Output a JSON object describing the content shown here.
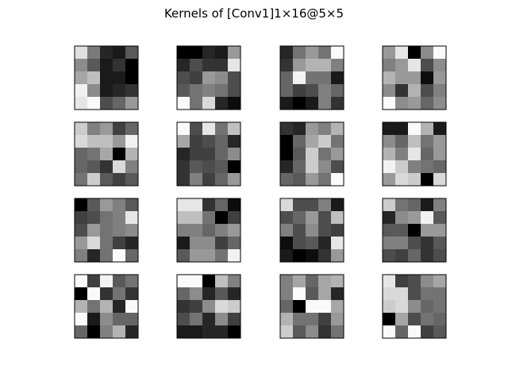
{
  "chart_data": {
    "type": "heatmap",
    "title": "Kernels of [Conv1]1×16@5×5",
    "grid": false,
    "colormap": "gray",
    "value_range": [
      0,
      1
    ],
    "kernels": [
      [
        [
          0.88,
          0.48,
          0.15,
          0.1,
          0.35
        ],
        [
          0.55,
          0.35,
          0.1,
          0.2,
          0.0
        ],
        [
          0.65,
          0.75,
          0.1,
          0.1,
          0.0
        ],
        [
          0.95,
          0.55,
          0.1,
          0.15,
          0.2
        ],
        [
          0.9,
          0.98,
          0.3,
          0.4,
          0.6
        ]
      ],
      [
        [
          0.0,
          0.0,
          0.15,
          0.1,
          0.6
        ],
        [
          0.15,
          0.3,
          0.2,
          0.2,
          0.9
        ],
        [
          0.3,
          0.25,
          0.6,
          0.55,
          0.3
        ],
        [
          0.35,
          0.45,
          0.5,
          0.45,
          0.3
        ],
        [
          0.98,
          0.45,
          0.85,
          0.15,
          0.05
        ]
      ],
      [
        [
          0.15,
          0.45,
          0.6,
          0.45,
          0.98
        ],
        [
          0.2,
          0.6,
          0.7,
          0.7,
          0.5
        ],
        [
          0.4,
          0.95,
          0.45,
          0.45,
          0.1
        ],
        [
          0.4,
          0.25,
          0.3,
          0.5,
          0.4
        ],
        [
          0.1,
          0.0,
          0.1,
          0.5,
          0.2
        ]
      ],
      [
        [
          0.6,
          0.9,
          0.0,
          0.55,
          0.98
        ],
        [
          0.5,
          0.6,
          0.9,
          0.3,
          0.55
        ],
        [
          0.7,
          0.6,
          0.6,
          0.05,
          0.6
        ],
        [
          0.55,
          0.2,
          0.7,
          0.3,
          0.5
        ],
        [
          0.98,
          0.55,
          0.6,
          0.4,
          0.55
        ]
      ],
      [
        [
          0.8,
          0.5,
          0.6,
          0.25,
          0.4
        ],
        [
          0.85,
          0.75,
          0.75,
          0.6,
          0.95
        ],
        [
          0.4,
          0.45,
          0.65,
          0.0,
          0.7
        ],
        [
          0.4,
          0.35,
          0.2,
          0.85,
          0.5
        ],
        [
          0.45,
          0.8,
          0.35,
          0.25,
          0.35
        ]
      ],
      [
        [
          0.98,
          0.3,
          0.9,
          0.45,
          0.75
        ],
        [
          0.65,
          0.25,
          0.3,
          0.4,
          0.15
        ],
        [
          0.15,
          0.25,
          0.25,
          0.4,
          0.55
        ],
        [
          0.2,
          0.35,
          0.3,
          0.35,
          0.0
        ],
        [
          0.2,
          0.5,
          0.25,
          0.4,
          0.6
        ]
      ],
      [
        [
          0.2,
          0.15,
          0.6,
          0.5,
          0.7
        ],
        [
          0.0,
          0.4,
          0.65,
          0.8,
          0.45
        ],
        [
          0.0,
          0.35,
          0.8,
          0.45,
          0.6
        ],
        [
          0.15,
          0.4,
          0.8,
          0.55,
          0.3
        ],
        [
          0.4,
          0.35,
          0.6,
          0.45,
          0.98
        ]
      ],
      [
        [
          0.1,
          0.1,
          0.98,
          0.7,
          0.1
        ],
        [
          0.55,
          0.4,
          0.75,
          0.45,
          0.6
        ],
        [
          0.7,
          0.5,
          0.9,
          0.4,
          0.6
        ],
        [
          0.95,
          0.8,
          0.5,
          0.45,
          0.4
        ],
        [
          0.6,
          0.85,
          0.8,
          0.0,
          0.85
        ]
      ],
      [
        [
          0.0,
          0.35,
          0.6,
          0.5,
          0.35
        ],
        [
          0.25,
          0.3,
          0.45,
          0.5,
          0.9
        ],
        [
          0.3,
          0.6,
          0.45,
          0.5,
          0.55
        ],
        [
          0.6,
          0.85,
          0.45,
          0.25,
          0.15
        ],
        [
          0.5,
          0.15,
          0.45,
          0.98,
          0.4
        ]
      ],
      [
        [
          0.9,
          0.9,
          0.2,
          0.4,
          0.05
        ],
        [
          0.75,
          0.75,
          0.45,
          0.0,
          0.25
        ],
        [
          0.5,
          0.5,
          0.4,
          0.5,
          0.6
        ],
        [
          0.1,
          0.55,
          0.55,
          0.25,
          0.4
        ],
        [
          0.35,
          0.6,
          0.6,
          0.45,
          0.95
        ]
      ],
      [
        [
          0.85,
          0.3,
          0.3,
          0.5,
          0.1
        ],
        [
          0.3,
          0.4,
          0.6,
          0.3,
          0.75
        ],
        [
          0.5,
          0.3,
          0.55,
          0.3,
          0.25
        ],
        [
          0.05,
          0.3,
          0.35,
          0.15,
          0.9
        ],
        [
          0.1,
          0.0,
          0.05,
          0.2,
          0.6
        ]
      ],
      [
        [
          0.8,
          0.45,
          0.4,
          0.1,
          0.5
        ],
        [
          0.15,
          0.55,
          0.6,
          0.95,
          0.35
        ],
        [
          0.35,
          0.35,
          0.0,
          0.6,
          0.6
        ],
        [
          0.5,
          0.5,
          0.3,
          0.2,
          0.35
        ],
        [
          0.3,
          0.25,
          0.4,
          0.2,
          0.3
        ]
      ],
      [
        [
          0.98,
          0.25,
          0.95,
          0.35,
          0.45
        ],
        [
          0.0,
          0.98,
          0.2,
          0.45,
          0.2
        ],
        [
          0.7,
          0.45,
          0.7,
          0.15,
          0.98
        ],
        [
          0.98,
          0.1,
          0.55,
          0.4,
          0.4
        ],
        [
          0.4,
          0.0,
          0.5,
          0.7,
          0.15
        ]
      ],
      [
        [
          0.98,
          0.98,
          0.0,
          0.75,
          0.5
        ],
        [
          0.4,
          0.55,
          0.15,
          0.35,
          0.15
        ],
        [
          0.2,
          0.25,
          0.55,
          0.85,
          0.8
        ],
        [
          0.3,
          0.45,
          0.15,
          0.55,
          0.25
        ],
        [
          0.1,
          0.1,
          0.15,
          0.15,
          0.0
        ]
      ],
      [
        [
          0.5,
          0.65,
          0.4,
          0.65,
          0.7
        ],
        [
          0.5,
          0.98,
          0.35,
          0.65,
          0.15
        ],
        [
          0.4,
          0.0,
          0.98,
          0.98,
          0.65
        ],
        [
          0.7,
          0.45,
          0.45,
          0.25,
          0.6
        ],
        [
          0.8,
          0.35,
          0.55,
          0.2,
          0.45
        ]
      ],
      [
        [
          0.9,
          0.25,
          0.3,
          0.55,
          0.65
        ],
        [
          0.85,
          0.85,
          0.3,
          0.45,
          0.45
        ],
        [
          0.8,
          0.85,
          0.55,
          0.4,
          0.45
        ],
        [
          0.0,
          0.65,
          0.3,
          0.45,
          0.4
        ],
        [
          0.98,
          0.4,
          0.98,
          0.25,
          0.35
        ]
      ]
    ]
  }
}
